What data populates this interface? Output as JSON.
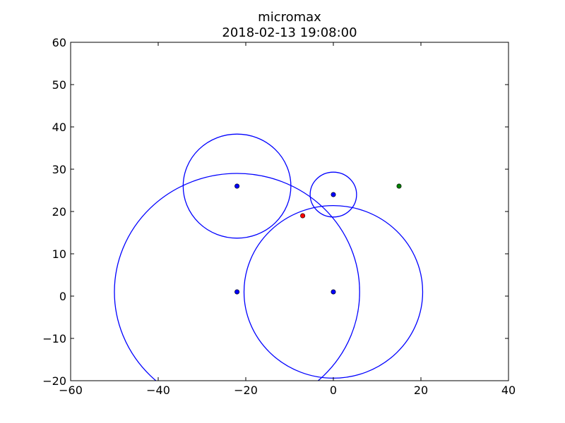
{
  "chart_data": {
    "type": "scatter",
    "title": "micromax",
    "subtitle": "2018-02-13 19:08:00",
    "xlim": [
      -60,
      40
    ],
    "ylim": [
      -20,
      60
    ],
    "xticks": [
      -60,
      -40,
      -20,
      0,
      20,
      40
    ],
    "yticks": [
      -20,
      -10,
      0,
      10,
      20,
      30,
      40,
      50,
      60
    ],
    "xticklabels": [
      "−60",
      "−40",
      "−20",
      "0",
      "20",
      "40"
    ],
    "yticklabels": [
      "−20",
      "−10",
      "0",
      "10",
      "20",
      "30",
      "40",
      "50",
      "60"
    ],
    "grid": false,
    "circles": [
      {
        "cx": -22,
        "cy": 26,
        "r": 12.3,
        "color": "#0000ff"
      },
      {
        "cx": 0,
        "cy": 24,
        "r": 5.3,
        "color": "#0000ff"
      },
      {
        "cx": -22,
        "cy": 1,
        "r": 28,
        "color": "#0000ff"
      },
      {
        "cx": 0,
        "cy": 1,
        "r": 20.4,
        "color": "#0000ff"
      }
    ],
    "points": [
      {
        "x": -22,
        "y": 26,
        "color": "#0000ff"
      },
      {
        "x": 0,
        "y": 24,
        "color": "#0000ff"
      },
      {
        "x": -22,
        "y": 1,
        "color": "#0000ff"
      },
      {
        "x": 0,
        "y": 1,
        "color": "#0000ff"
      },
      {
        "x": -7,
        "y": 19,
        "color": "#ff0000"
      },
      {
        "x": 15,
        "y": 26,
        "color": "#008000"
      }
    ]
  }
}
